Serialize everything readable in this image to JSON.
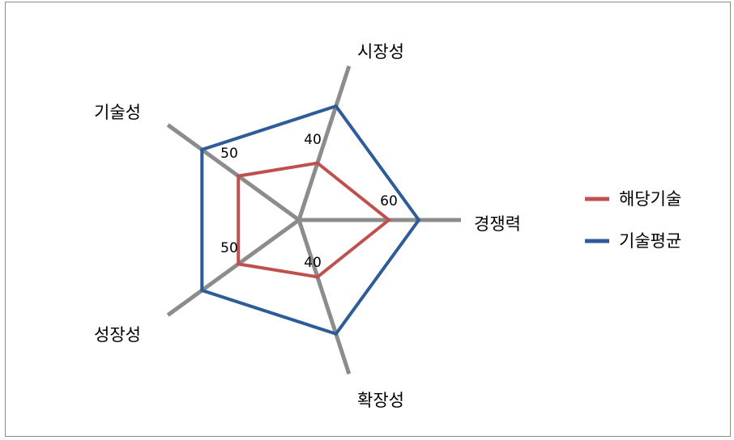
{
  "chart_data": {
    "type": "radar",
    "axes": [
      "경쟁력",
      "확장성",
      "성장성",
      "기술성",
      "시장성"
    ],
    "series": [
      {
        "name": "해당기술",
        "values": [
          60,
          40,
          50,
          50,
          40
        ],
        "color": "#c0504d"
      },
      {
        "name": "기술평균",
        "values": [
          80,
          80,
          80,
          80,
          80
        ],
        "color": "#2e5c99"
      }
    ],
    "data_labels": [
      60,
      40,
      50,
      50,
      40
    ],
    "rlim": [
      0,
      100
    ],
    "axis_color": "#8c8c8c",
    "legend_position": "right"
  }
}
